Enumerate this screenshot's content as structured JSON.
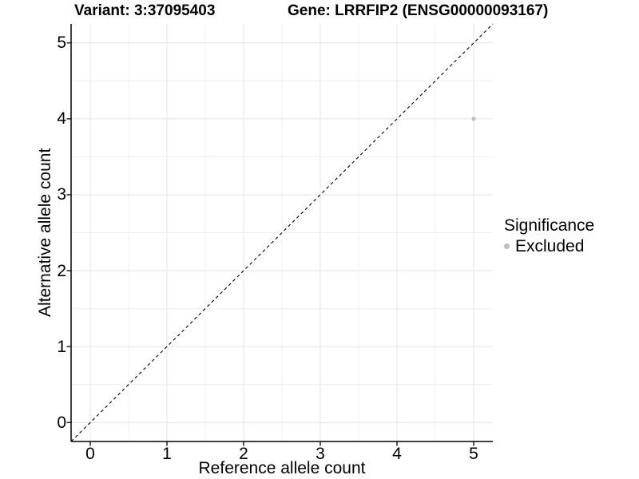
{
  "titles": {
    "variant": "Variant: 3:37095403",
    "gene": "Gene: LRRFIP2 (ENSG00000093167)"
  },
  "legend": {
    "title": "Significance",
    "items": [
      {
        "label": "Excluded",
        "color": "#bebebe"
      }
    ]
  },
  "chart_data": {
    "type": "scatter",
    "title_left": "Variant: 3:37095403",
    "title_right": "Gene: LRRFIP2 (ENSG00000093167)",
    "xlabel": "Reference allele count",
    "ylabel": "Alternative allele count",
    "xlim": [
      -0.25,
      5.25
    ],
    "ylim": [
      -0.25,
      5.25
    ],
    "x_ticks": [
      0,
      1,
      2,
      3,
      4,
      5
    ],
    "y_ticks": [
      0,
      1,
      2,
      3,
      4,
      5
    ],
    "grid": {
      "major_step": 1,
      "minor_step": 0.5,
      "major_color": "#e4e4e4",
      "minor_color": "#f0f0f0"
    },
    "identity_line": {
      "style": "dashed",
      "color": "#000000",
      "from": [
        -0.25,
        -0.25
      ],
      "to": [
        5.25,
        5.25
      ]
    },
    "series": [
      {
        "name": "Excluded",
        "color": "#bebebe",
        "points": [
          {
            "x": 5,
            "y": 4
          }
        ]
      }
    ],
    "legend_title": "Significance",
    "legend_position": "right",
    "axis_color": "#000000",
    "background": "#ffffff"
  }
}
